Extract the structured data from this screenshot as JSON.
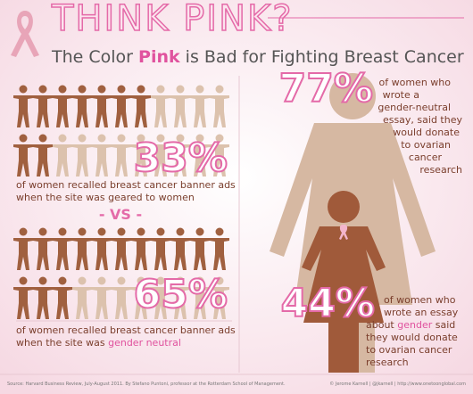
{
  "header": {
    "title": "THINK PINK?",
    "subtitle": [
      "The Color ",
      "Pink",
      " is Bad for Fighting Breast Cancer"
    ]
  },
  "left": {
    "first": {
      "stat": "33%",
      "lines": [
        "of women recalled breast cancer banner ads",
        "when the site was geared to women"
      ]
    },
    "vs": "- VS -",
    "second": {
      "stat": "65%",
      "lines": [
        "of women recalled breast cancer banner ads",
        "when the site was ",
        "gender neutral"
      ]
    }
  },
  "right": {
    "first": {
      "stat": "77%",
      "lines": [
        "of women who",
        "wrote a",
        "gender-neutral",
        "essay, said they",
        "would donate",
        "to ovarian",
        "cancer",
        "research"
      ]
    },
    "second": {
      "stat": "44%",
      "lines": [
        "of women who",
        "wrote an essay",
        "about ",
        "gender",
        " said",
        "they would donate",
        "to ovarian cancer",
        "research"
      ]
    }
  },
  "footer": {
    "source": "Source: Harvard Business Review, July-August 2011. By Stefano Puntoni, professor at the Rotterdam School of Management.",
    "credit": "© Jerome Karnell | @jkarnell | http://www.onetoonglobal.com"
  }
}
